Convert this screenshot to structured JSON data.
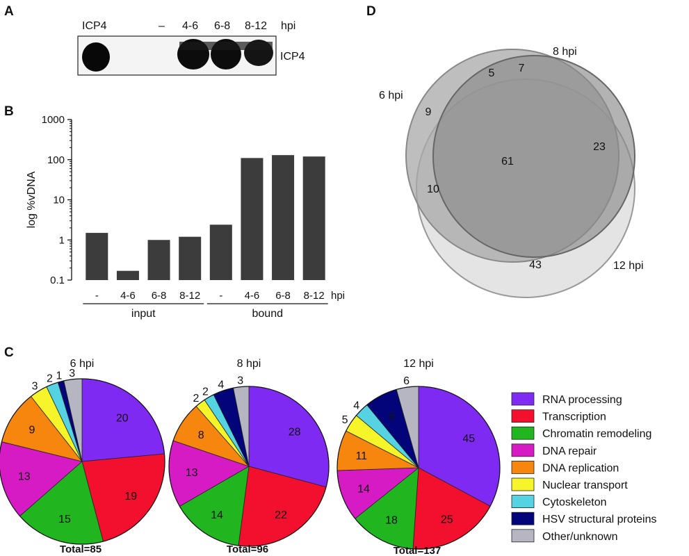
{
  "panels": {
    "a": "A",
    "b": "B",
    "c": "C",
    "d": "D"
  },
  "western": {
    "lanes": [
      "ICP4",
      "–",
      "4-6",
      "6-8",
      "8-12"
    ],
    "lane_unit": "hpi",
    "band_label": "ICP4"
  },
  "colors": {
    "bar": "#3c3c3c",
    "RNA processing": "#7f2af2",
    "Transcription": "#f2102e",
    "Chromatin remodeling": "#21b51f",
    "DNA repair": "#d61bc5",
    "DNA replication": "#f7860f",
    "Nuclear transport": "#f5f52a",
    "Cytoskeleton": "#55d3e2",
    "HSV structural proteins": "#03037a",
    "Other/unknown": "#b6b6c2"
  },
  "chart_data": [
    {
      "type": "bar",
      "panel": "B",
      "ylabel": "log %vDNA",
      "yscale": "log",
      "ylim": [
        0.1,
        1000
      ],
      "yticks": [
        "0.1",
        "1",
        "10",
        "100",
        "1000"
      ],
      "categories": [
        "-",
        "4-6",
        "6-8",
        "8-12",
        "-",
        "4-6",
        "6-8",
        "8-12"
      ],
      "values": [
        1.5,
        0.17,
        1.0,
        1.2,
        2.4,
        110,
        130,
        120
      ],
      "groups": [
        {
          "label": "input",
          "first": 0,
          "last": 3
        },
        {
          "label": "bound",
          "first": 4,
          "last": 7
        }
      ],
      "x_unit": "hpi"
    },
    {
      "type": "pie",
      "panel": "C",
      "title": "6 hpi",
      "total": "Total=85",
      "labels": [
        "RNA processing",
        "Transcription",
        "Chromatin remodeling",
        "DNA repair",
        "DNA replication",
        "Nuclear transport",
        "Cytoskeleton",
        "HSV structural proteins",
        "Other/unknown"
      ],
      "values": [
        20,
        19,
        15,
        13,
        9,
        3,
        2,
        1,
        3
      ]
    },
    {
      "type": "pie",
      "panel": "C",
      "title": "8 hpi",
      "total": "Total=96",
      "labels": [
        "RNA processing",
        "Transcription",
        "Chromatin remodeling",
        "DNA repair",
        "DNA replication",
        "Nuclear transport",
        "Cytoskeleton",
        "HSV structural proteins",
        "Other/unknown"
      ],
      "values": [
        28,
        22,
        14,
        13,
        8,
        2,
        2,
        4,
        3
      ]
    },
    {
      "type": "pie",
      "panel": "C",
      "title": "12 hpi",
      "total": "Total=137",
      "labels": [
        "RNA processing",
        "Transcription",
        "Chromatin remodeling",
        "DNA repair",
        "DNA replication",
        "Nuclear transport",
        "Cytoskeleton",
        "HSV structural proteins",
        "Other/unknown"
      ],
      "values": [
        45,
        25,
        18,
        14,
        11,
        5,
        4,
        9,
        6
      ]
    },
    {
      "type": "venn",
      "panel": "D",
      "sets": [
        "6 hpi",
        "8 hpi",
        "12 hpi"
      ],
      "regions": {
        "6 only": 9,
        "8 only": 7,
        "6 and 8 only": 5,
        "8 and 12 only": 23,
        "6 and 12 only": 10,
        "all three": 61,
        "12 only": 43
      }
    }
  ],
  "legend": [
    "RNA processing",
    "Transcription",
    "Chromatin remodeling",
    "DNA repair",
    "DNA replication",
    "Nuclear transport",
    "Cytoskeleton",
    "HSV structural proteins",
    "Other/unknown"
  ]
}
